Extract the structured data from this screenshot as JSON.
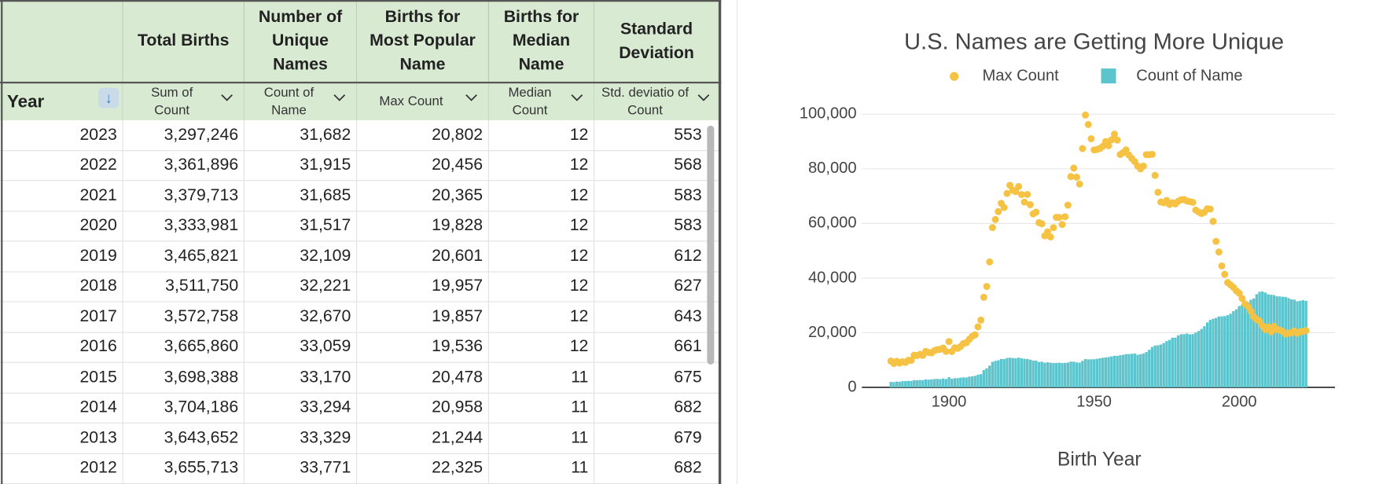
{
  "table": {
    "headers": [
      "Total Births",
      "Number of Unique Names",
      "Births for Most Popular Name",
      "Births for Median Name",
      "Standard Deviation"
    ],
    "fields": [
      "Year",
      "Sum of Count",
      "Count of Name",
      "Max Count",
      "Median Count",
      "Std. deviatio of Count"
    ],
    "rows": [
      [
        2023,
        "3,297,246",
        "31,682",
        "20,802",
        12,
        553
      ],
      [
        2022,
        "3,361,896",
        "31,915",
        "20,456",
        12,
        568
      ],
      [
        2021,
        "3,379,713",
        "31,685",
        "20,365",
        12,
        583
      ],
      [
        2020,
        "3,333,981",
        "31,517",
        "19,828",
        12,
        583
      ],
      [
        2019,
        "3,465,821",
        "32,109",
        "20,601",
        12,
        612
      ],
      [
        2018,
        "3,511,750",
        "32,221",
        "19,957",
        12,
        627
      ],
      [
        2017,
        "3,572,758",
        "32,670",
        "19,857",
        12,
        643
      ],
      [
        2016,
        "3,665,860",
        "33,059",
        "19,536",
        12,
        661
      ],
      [
        2015,
        "3,698,388",
        "33,170",
        "20,478",
        11,
        675
      ],
      [
        2014,
        "3,704,186",
        "33,294",
        "20,958",
        11,
        682
      ],
      [
        2013,
        "3,643,652",
        "33,329",
        "21,244",
        11,
        679
      ],
      [
        2012,
        "3,655,713",
        "33,771",
        "22,325",
        11,
        682
      ]
    ]
  },
  "chart_data": {
    "type": "combo",
    "title": "U.S. Names are Getting More Unique",
    "xlabel": "Birth Year",
    "x": [
      1880,
      1881,
      1882,
      1883,
      1884,
      1885,
      1886,
      1887,
      1888,
      1889,
      1890,
      1891,
      1892,
      1893,
      1894,
      1895,
      1896,
      1897,
      1898,
      1899,
      1900,
      1901,
      1902,
      1903,
      1904,
      1905,
      1906,
      1907,
      1908,
      1909,
      1910,
      1911,
      1912,
      1913,
      1914,
      1915,
      1916,
      1917,
      1918,
      1919,
      1920,
      1921,
      1922,
      1923,
      1924,
      1925,
      1926,
      1927,
      1928,
      1929,
      1930,
      1931,
      1932,
      1933,
      1934,
      1935,
      1936,
      1937,
      1938,
      1939,
      1940,
      1941,
      1942,
      1943,
      1944,
      1945,
      1946,
      1947,
      1948,
      1949,
      1950,
      1951,
      1952,
      1953,
      1954,
      1955,
      1956,
      1957,
      1958,
      1959,
      1960,
      1961,
      1962,
      1963,
      1964,
      1965,
      1966,
      1967,
      1968,
      1969,
      1970,
      1971,
      1972,
      1973,
      1974,
      1975,
      1976,
      1977,
      1978,
      1979,
      1980,
      1981,
      1982,
      1983,
      1984,
      1985,
      1986,
      1987,
      1988,
      1989,
      1990,
      1991,
      1992,
      1993,
      1994,
      1995,
      1996,
      1997,
      1998,
      1999,
      2000,
      2001,
      2002,
      2003,
      2004,
      2005,
      2006,
      2007,
      2008,
      2009,
      2010,
      2011,
      2012,
      2013,
      2014,
      2015,
      2016,
      2017,
      2018,
      2019,
      2020,
      2021,
      2022,
      2023
    ],
    "series": [
      {
        "name": "Max Count",
        "type": "scatter",
        "color": "#f6c244",
        "values": [
          9655,
          8769,
          9557,
          8894,
          9388,
          9128,
          9889,
          9888,
          11754,
          11648,
          12078,
          11703,
          13172,
          12784,
          12632,
          13446,
          13812,
          13919,
          14406,
          13172,
          16781,
          13136,
          14486,
          14275,
          14961,
          16066,
          16370,
          17580,
          18665,
          19250,
          22148,
          24626,
          32998,
          36954,
          45920,
          58496,
          61453,
          64352,
          67370,
          65839,
          70983,
          73985,
          72172,
          71636,
          73520,
          70601,
          67835,
          70637,
          66869,
          63504,
          64139,
          60296,
          59869,
          55470,
          56939,
          55061,
          58466,
          62234,
          62205,
          59639,
          62477,
          66717,
          77174,
          80249,
          76951,
          74453,
          87431,
          99680,
          96211,
          91011,
          86917,
          87078,
          87431,
          88236,
          89998,
          88476,
          90622,
          92695,
          90517,
          85255,
          85927,
          86917,
          85033,
          83774,
          82642,
          81018,
          79988,
          81018,
          85201,
          85201,
          85299,
          77585,
          71401,
          67847,
          67577,
          68444,
          66944,
          67617,
          67157,
          68143,
          68693,
          68765,
          68228,
          67998,
          67736,
          64906,
          64212,
          63647,
          64133,
          65382,
          65282,
          60785,
          53444,
          49552,
          44465,
          41395,
          38365,
          37548,
          36614,
          35361,
          34471,
          32540,
          30568,
          29622,
          27879,
          25830,
          24841,
          24276,
          22594,
          21169,
          22129,
          20366,
          22325,
          21244,
          20958,
          20478,
          19536,
          19857,
          19957,
          20601,
          19828,
          20365,
          20456,
          20802
        ]
      },
      {
        "name": "Count of Name",
        "type": "bar",
        "color": "#5bc4cc",
        "values": [
          2000,
          1935,
          2127,
          2084,
          2297,
          2294,
          2392,
          2373,
          2651,
          2590,
          2695,
          2660,
          2921,
          2831,
          2941,
          3049,
          3091,
          3028,
          3264,
          3042,
          3730,
          3153,
          3362,
          3389,
          3560,
          3655,
          3633,
          3948,
          4018,
          4227,
          4629,
          4867,
          6351,
          6968,
          7965,
          9357,
          9696,
          9913,
          10398,
          10369,
          10756,
          10857,
          10756,
          10643,
          10869,
          10638,
          10458,
          10406,
          10159,
          9820,
          9791,
          9298,
          9381,
          9013,
          9180,
          9037,
          8894,
          8946,
          9032,
          8918,
          8961,
          9085,
          9425,
          9408,
          9152,
          9025,
          9705,
          10371,
          10241,
          10269,
          10303,
          10462,
          10646,
          10837,
          10968,
          11115,
          11340,
          11564,
          11522,
          11767,
          11921,
          12182,
          12209,
          12282,
          12397,
          11952,
          12151,
          12397,
          12936,
          13749,
          14779,
          15295,
          15412,
          15682,
          16249,
          16944,
          17391,
          18175,
          18231,
          19039,
          19452,
          19475,
          19694,
          19407,
          19506,
          20085,
          20657,
          21406,
          22367,
          23775,
          24716,
          25109,
          25427,
          25966,
          25997,
          26080,
          26423,
          26970,
          27902,
          28552,
          29772,
          30274,
          30564,
          31185,
          32048,
          32549,
          34088,
          34961,
          35079,
          34709,
          34073,
          33908,
          33771,
          33329,
          33294,
          33170,
          33059,
          32670,
          32221,
          32109,
          31517,
          31685,
          31915,
          31682
        ]
      }
    ],
    "xlim": [
      1870,
      2033
    ],
    "xticks": [
      1900,
      1950,
      2000
    ],
    "ylim": [
      0,
      100000
    ],
    "yticks": [
      0,
      {
        "value": 20000,
        "label": "20,000"
      },
      {
        "value": 40000,
        "label": "40,000"
      },
      {
        "value": 60000,
        "label": "60,000"
      },
      {
        "value": 80000,
        "label": "80,000"
      },
      {
        "value": 100000,
        "label": "100,000"
      }
    ],
    "grid": true
  }
}
